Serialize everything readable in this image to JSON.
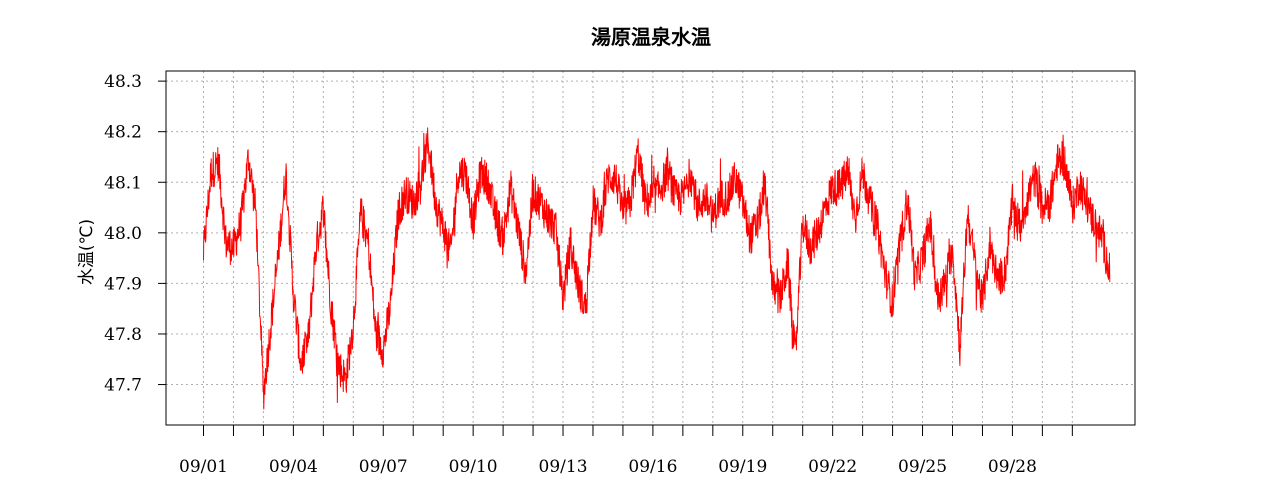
{
  "chart_data": {
    "type": "line",
    "title": "湯原温泉水温",
    "xlabel": "",
    "ylabel": "水温(℃)",
    "x_range": [
      "08/31 12:00",
      "10/03"
    ],
    "ylim": [
      47.62,
      48.32
    ],
    "grid": true,
    "legend": "none",
    "colors": {
      "series": "#ff0000",
      "grid": "#b0b0b0",
      "frame": "#000000"
    },
    "yticks": [
      47.7,
      47.8,
      47.9,
      48.0,
      48.1,
      48.2,
      48.3
    ],
    "ytick_labels": [
      "47.7",
      "47.8",
      "47.9",
      "48.0",
      "48.1",
      "48.2",
      "48.3"
    ],
    "xticks_minor": [
      "09/01",
      "09/02",
      "09/03",
      "09/04",
      "09/05",
      "09/06",
      "09/07",
      "09/08",
      "09/09",
      "09/10",
      "09/11",
      "09/12",
      "09/13",
      "09/14",
      "09/15",
      "09/16",
      "09/17",
      "09/18",
      "09/19",
      "09/20",
      "09/21",
      "09/22",
      "09/23",
      "09/24",
      "09/25",
      "09/26",
      "09/27",
      "09/28",
      "09/29",
      "09/30"
    ],
    "xticks_labeled": [
      "09/01",
      "09/04",
      "09/07",
      "09/10",
      "09/13",
      "09/16",
      "09/19",
      "09/22",
      "09/25",
      "09/28"
    ],
    "series": [
      {
        "name": "",
        "x": [
          "09/01 00:00",
          "09/01 06:00",
          "09/01 12:00",
          "09/01 18:00",
          "09/02 00:00",
          "09/02 06:00",
          "09/02 12:00",
          "09/02 18:00",
          "09/03 00:00",
          "09/03 06:00",
          "09/03 12:00",
          "09/03 18:00",
          "09/04 00:00",
          "09/04 06:00",
          "09/04 12:00",
          "09/04 18:00",
          "09/05 00:00",
          "09/05 06:00",
          "09/05 12:00",
          "09/05 18:00",
          "09/06 00:00",
          "09/06 06:00",
          "09/06 12:00",
          "09/06 18:00",
          "09/07 00:00",
          "09/07 06:00",
          "09/07 12:00",
          "09/07 18:00",
          "09/08 00:00",
          "09/08 06:00",
          "09/08 12:00",
          "09/08 18:00",
          "09/09 00:00",
          "09/09 06:00",
          "09/09 12:00",
          "09/09 18:00",
          "09/10 00:00",
          "09/10 06:00",
          "09/10 12:00",
          "09/10 18:00",
          "09/11 00:00",
          "09/11 06:00",
          "09/11 12:00",
          "09/11 18:00",
          "09/12 00:00",
          "09/12 06:00",
          "09/12 12:00",
          "09/12 18:00",
          "09/13 00:00",
          "09/13 06:00",
          "09/13 12:00",
          "09/13 18:00",
          "09/14 00:00",
          "09/14 06:00",
          "09/14 12:00",
          "09/14 18:00",
          "09/15 00:00",
          "09/15 06:00",
          "09/15 12:00",
          "09/15 18:00",
          "09/16 00:00",
          "09/16 06:00",
          "09/16 12:00",
          "09/16 18:00",
          "09/17 00:00",
          "09/17 06:00",
          "09/17 12:00",
          "09/17 18:00",
          "09/18 00:00",
          "09/18 06:00",
          "09/18 12:00",
          "09/18 18:00",
          "09/19 00:00",
          "09/19 06:00",
          "09/19 12:00",
          "09/19 18:00",
          "09/20 00:00",
          "09/20 06:00",
          "09/20 12:00",
          "09/20 18:00",
          "09/21 00:00",
          "09/21 06:00",
          "09/21 12:00",
          "09/21 18:00",
          "09/22 00:00",
          "09/22 06:00",
          "09/22 12:00",
          "09/22 18:00",
          "09/23 00:00",
          "09/23 06:00",
          "09/23 12:00",
          "09/23 18:00",
          "09/24 00:00",
          "09/24 06:00",
          "09/24 12:00",
          "09/24 18:00",
          "09/25 00:00",
          "09/25 06:00",
          "09/25 12:00",
          "09/25 18:00",
          "09/26 00:00",
          "09/26 06:00",
          "09/26 12:00",
          "09/26 18:00",
          "09/27 00:00",
          "09/27 06:00",
          "09/27 12:00",
          "09/27 18:00",
          "09/28 00:00",
          "09/28 06:00",
          "09/28 12:00",
          "09/28 18:00",
          "09/29 00:00",
          "09/29 06:00",
          "09/29 12:00",
          "09/29 18:00",
          "09/30 00:00",
          "09/30 06:00",
          "09/30 12:00",
          "09/30 18:00",
          "10/01 00:00",
          "10/01 06:00"
        ],
        "y": [
          47.96,
          48.12,
          48.14,
          47.98,
          47.97,
          48.02,
          48.15,
          48.04,
          47.68,
          47.82,
          47.96,
          48.12,
          47.88,
          47.74,
          47.79,
          47.97,
          48.05,
          47.86,
          47.74,
          47.71,
          47.82,
          48.04,
          47.98,
          47.8,
          47.77,
          47.86,
          48.04,
          48.08,
          48.06,
          48.1,
          48.18,
          48.06,
          48.01,
          47.96,
          48.12,
          48.12,
          48.02,
          48.12,
          48.1,
          48.03,
          47.99,
          48.09,
          48.01,
          47.92,
          48.08,
          48.06,
          48.03,
          48.01,
          47.87,
          47.98,
          47.9,
          47.85,
          48.06,
          48.02,
          48.11,
          48.11,
          48.04,
          48.06,
          48.16,
          48.06,
          48.07,
          48.09,
          48.12,
          48.07,
          48.07,
          48.12,
          48.05,
          48.07,
          48.03,
          48.07,
          48.07,
          48.11,
          48.06,
          47.99,
          48.02,
          48.09,
          47.89,
          47.87,
          47.94,
          47.75,
          48.02,
          47.97,
          48.0,
          48.05,
          48.09,
          48.09,
          48.12,
          48.03,
          48.12,
          48.06,
          48.01,
          47.92,
          47.86,
          47.98,
          48.07,
          47.91,
          47.95,
          48.02,
          47.87,
          47.9,
          47.97,
          47.77,
          48.04,
          47.94,
          47.86,
          47.98,
          47.91,
          47.92,
          48.06,
          48.01,
          48.07,
          48.11,
          48.05,
          48.06,
          48.14,
          48.14,
          48.05,
          48.1,
          48.05,
          48.02,
          47.99,
          47.92
        ]
      }
    ]
  }
}
